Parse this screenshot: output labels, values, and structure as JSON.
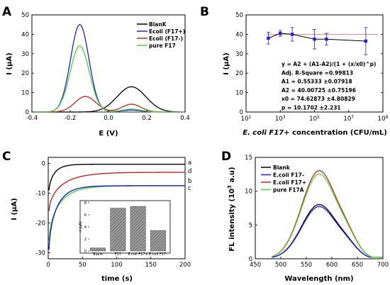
{
  "chart_data": [
    {
      "panel": "A",
      "type": "line",
      "xlabel": "E (V)",
      "ylabel": "I (µA)",
      "xlim": [
        -0.4,
        0.4
      ],
      "ylim": [
        0,
        50
      ],
      "xticks": [
        "-0.4",
        "-0.2",
        "0.0",
        "0.2",
        "0.4"
      ],
      "yticks": [
        "0",
        "10",
        "20",
        "30",
        "40",
        "50"
      ],
      "legend": "top-right",
      "series": [
        {
          "name": "BlanK",
          "color": "#000000",
          "peaks": [
            {
              "x": 0.12,
              "y": 13
            }
          ]
        },
        {
          "name": "Ecoli (F17+)",
          "color": "#1f1fd6",
          "peaks": [
            {
              "x": -0.15,
              "y": 45
            },
            {
              "x": 0.12,
              "y": 1
            }
          ]
        },
        {
          "name": "Ecoli (F17-)",
          "color": "#c0271f",
          "peaks": [
            {
              "x": -0.12,
              "y": 8
            },
            {
              "x": 0.12,
              "y": 4
            }
          ]
        },
        {
          "name": "pure F17",
          "color": "#4fd33a",
          "peaks": [
            {
              "x": -0.15,
              "y": 34
            },
            {
              "x": 0.12,
              "y": 1.5
            }
          ]
        }
      ]
    },
    {
      "panel": "B",
      "type": "scatter",
      "xlabel_italic": "E. coli F17+",
      "xlabel_rest": " concentration (CFU/mL)",
      "ylabel": "I (µA)",
      "xscale": "log",
      "xlim": [
        10,
        1000000000
      ],
      "ylim": [
        0,
        50
      ],
      "xticks": [
        {
          "base": "10",
          "exp": "1"
        },
        {
          "base": "10",
          "exp": "3"
        },
        {
          "base": "10",
          "exp": "5"
        },
        {
          "base": "10",
          "exp": "7"
        },
        {
          "base": "10",
          "exp": "9"
        }
      ],
      "yticks": [
        "0",
        "10",
        "20",
        "30",
        "40",
        "50"
      ],
      "x": [
        200,
        1000,
        5000,
        100000,
        500000,
        100000000
      ],
      "y": [
        38,
        40.5,
        40,
        37.5,
        37.5,
        36.5
      ],
      "yerr": [
        3,
        1.5,
        3.5,
        5,
        3,
        7
      ],
      "fit_color": "#e8826f",
      "point_color": "#1f1fd6",
      "fit_text": [
        "y = A2 + (A1-A2)/(1 + (x/x0)^p)",
        "Adj. R-Square =0.99813",
        "A1 = 0.55333  ±0.07918",
        "A2 = 40.00725 ±0.75196",
        "x0 = 74.62873  ±4.80829",
        "p   = 10.1702   ±2.231"
      ]
    },
    {
      "panel": "C",
      "type": "line",
      "xlabel": "time (s)",
      "ylabel": "I (µA)",
      "xlim": [
        0,
        200
      ],
      "ylim": [
        -30,
        2
      ],
      "xticks": [
        "0",
        "50",
        "100",
        "150",
        "200"
      ],
      "yticks": [
        "0",
        "-10",
        "-20",
        "-30"
      ],
      "series": [
        {
          "name": "a",
          "color": "#000000",
          "y0": -9,
          "yend": -0.3
        },
        {
          "name": "d",
          "color": "#c0271f",
          "y0": -16,
          "yend": -3
        },
        {
          "name": "b",
          "color": "#4fd33a",
          "y0": -26,
          "yend": -7.5
        },
        {
          "name": "c",
          "color": "#1f1fd6",
          "y0": -29,
          "yend": -7.5
        }
      ],
      "inset": {
        "type": "bar",
        "ylabel": "-I (µA)",
        "ylim": [
          0,
          8
        ],
        "yticks": [
          "0",
          "2",
          "4",
          "6",
          "8"
        ],
        "categories": [
          "Blank",
          "F17",
          "E.coli F17+",
          "E.coli F17-"
        ],
        "values": [
          0.5,
          7.1,
          7.4,
          3.4
        ]
      }
    },
    {
      "panel": "D",
      "type": "line",
      "xlabel": "Wavelength (nm)",
      "ylabel_prefix": "FL intensity (10",
      "ylabel_exp": "3",
      "ylabel_suffix": " a.u)",
      "xlim": [
        450,
        700
      ],
      "ylim": [
        0,
        15
      ],
      "xticks": [
        "450",
        "500",
        "550",
        "600",
        "650",
        "700"
      ],
      "yticks": [
        "0",
        "5",
        "10",
        "15"
      ],
      "legend": "top-left",
      "series": [
        {
          "name": "Blank",
          "color": "#000000",
          "peak": 8
        },
        {
          "name": "E.coli F17-",
          "color": "#1f1fd6",
          "peak": 7.7
        },
        {
          "name": "E.coli F17+",
          "color": "#c0271f",
          "peak": 13
        },
        {
          "name": "pure F17A",
          "color": "#4fd33a",
          "peak": 12.5
        }
      ]
    }
  ]
}
